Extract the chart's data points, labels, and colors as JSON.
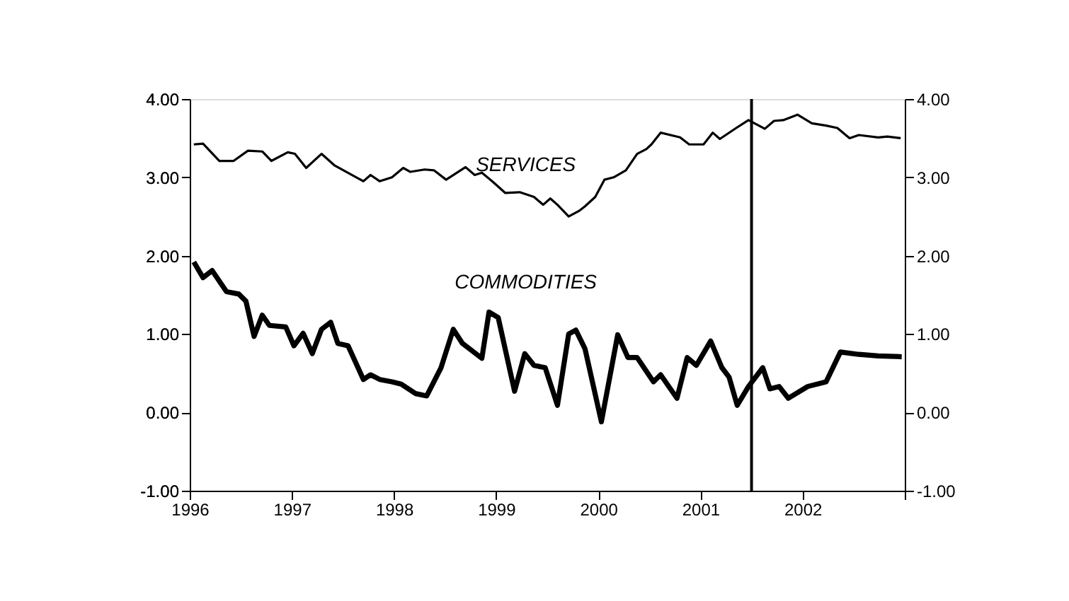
{
  "chart_data": {
    "type": "line",
    "xlim": [
      1996,
      2003
    ],
    "xticks": [
      1996,
      1997,
      1998,
      1999,
      2000,
      2001,
      2002,
      {
        "value": 2003,
        "label": null
      }
    ],
    "ylim": [
      -1,
      4
    ],
    "yticks": [
      {
        "value": -1,
        "label": "-1.00"
      },
      {
        "value": 0,
        "label": "0.00"
      },
      {
        "value": 1,
        "label": "1.00"
      },
      {
        "value": 2,
        "label": "2.00"
      },
      {
        "value": 3,
        "label": "3.00"
      },
      {
        "value": 4,
        "label": "4.00"
      }
    ],
    "y2lim": [
      -1,
      4
    ],
    "y2ticks": [
      {
        "value": -1,
        "label": "-1.00"
      },
      {
        "value": 0,
        "label": "0.00"
      },
      {
        "value": 1,
        "label": "1.00"
      },
      {
        "value": 2,
        "label": "2.00"
      },
      {
        "value": 3,
        "label": "3.00"
      },
      {
        "value": 4,
        "label": "4.00"
      }
    ],
    "grid": false,
    "marker": "none",
    "line_style": "solid",
    "series": [
      {
        "name": "SERVICES",
        "color": "#000000",
        "x": [
          1996.04,
          1996.13,
          1996.29,
          1996.43,
          1996.57,
          1996.71,
          1996.8,
          1996.96,
          1997.03,
          1997.14,
          1997.29,
          1997.42,
          1997.7,
          1997.77,
          1997.86,
          1997.98,
          1998.09,
          1998.16,
          1998.3,
          1998.39,
          1998.51,
          1998.7,
          1998.79,
          1998.86,
          1998.97,
          1999.09,
          1999.23,
          1999.37,
          1999.46,
          1999.53,
          1999.6,
          1999.71,
          1999.81,
          1999.87,
          1999.97,
          2000.06,
          2000.15,
          2000.27,
          2000.38,
          2000.47,
          2000.52,
          2000.61,
          2000.8,
          2000.89,
          2001.03,
          2001.12,
          2001.19,
          2001.35,
          2001.47,
          2001.63,
          2001.72,
          2001.81,
          2001.95,
          2002.09,
          2002.23,
          2002.34,
          2002.46,
          2002.55,
          2002.74,
          2002.83,
          2002.96
        ],
        "values": [
          3.42,
          3.43,
          3.21,
          3.21,
          3.34,
          3.33,
          3.21,
          3.32,
          3.3,
          3.12,
          3.3,
          3.15,
          2.95,
          3.03,
          2.95,
          3.0,
          3.12,
          3.07,
          3.1,
          3.09,
          2.97,
          3.13,
          3.03,
          3.06,
          2.94,
          2.8,
          2.81,
          2.75,
          2.65,
          2.73,
          2.65,
          2.5,
          2.57,
          2.63,
          2.75,
          2.97,
          3.0,
          3.09,
          3.3,
          3.36,
          3.42,
          3.57,
          3.51,
          3.42,
          3.42,
          3.57,
          3.49,
          3.63,
          3.73,
          3.62,
          3.72,
          3.73,
          3.8,
          3.69,
          3.66,
          3.63,
          3.5,
          3.54,
          3.51,
          3.52,
          3.5
        ]
      },
      {
        "name": "COMMODITIES",
        "color": "#000000",
        "x": [
          1996.04,
          1996.13,
          1996.22,
          1996.36,
          1996.48,
          1996.55,
          1996.63,
          1996.71,
          1996.78,
          1996.94,
          1997.02,
          1997.11,
          1997.2,
          1997.29,
          1997.38,
          1997.45,
          1997.55,
          1997.7,
          1997.77,
          1997.86,
          1997.98,
          1998.07,
          1998.21,
          1998.32,
          1998.46,
          1998.58,
          1998.67,
          1998.86,
          1998.93,
          1999.02,
          1999.18,
          1999.28,
          1999.37,
          1999.48,
          1999.6,
          1999.71,
          1999.78,
          1999.87,
          2000.03,
          2000.19,
          2000.29,
          2000.38,
          2000.54,
          2000.61,
          2000.77,
          2000.87,
          2000.96,
          2001.1,
          2001.21,
          2001.28,
          2001.36,
          2001.47,
          2001.61,
          2001.68,
          2001.77,
          2001.86,
          2002.05,
          2002.23,
          2002.37,
          2002.55,
          2002.74,
          2002.97
        ],
        "values": [
          1.92,
          1.72,
          1.81,
          1.54,
          1.51,
          1.42,
          0.97,
          1.24,
          1.11,
          1.09,
          0.85,
          1.01,
          0.75,
          1.06,
          1.15,
          0.88,
          0.85,
          0.42,
          0.48,
          0.42,
          0.39,
          0.36,
          0.24,
          0.21,
          0.57,
          1.06,
          0.88,
          0.69,
          1.28,
          1.21,
          0.27,
          0.75,
          0.6,
          0.57,
          0.09,
          1.0,
          1.05,
          0.81,
          -0.12,
          0.99,
          0.7,
          0.7,
          0.39,
          0.48,
          0.18,
          0.7,
          0.6,
          0.91,
          0.57,
          0.45,
          0.09,
          0.33,
          0.57,
          0.3,
          0.33,
          0.18,
          0.33,
          0.39,
          0.77,
          0.74,
          0.72,
          0.71
        ]
      }
    ],
    "ref_lines": [
      {
        "axis": "x",
        "value": 2001.5,
        "color": "#000000"
      }
    ]
  }
}
